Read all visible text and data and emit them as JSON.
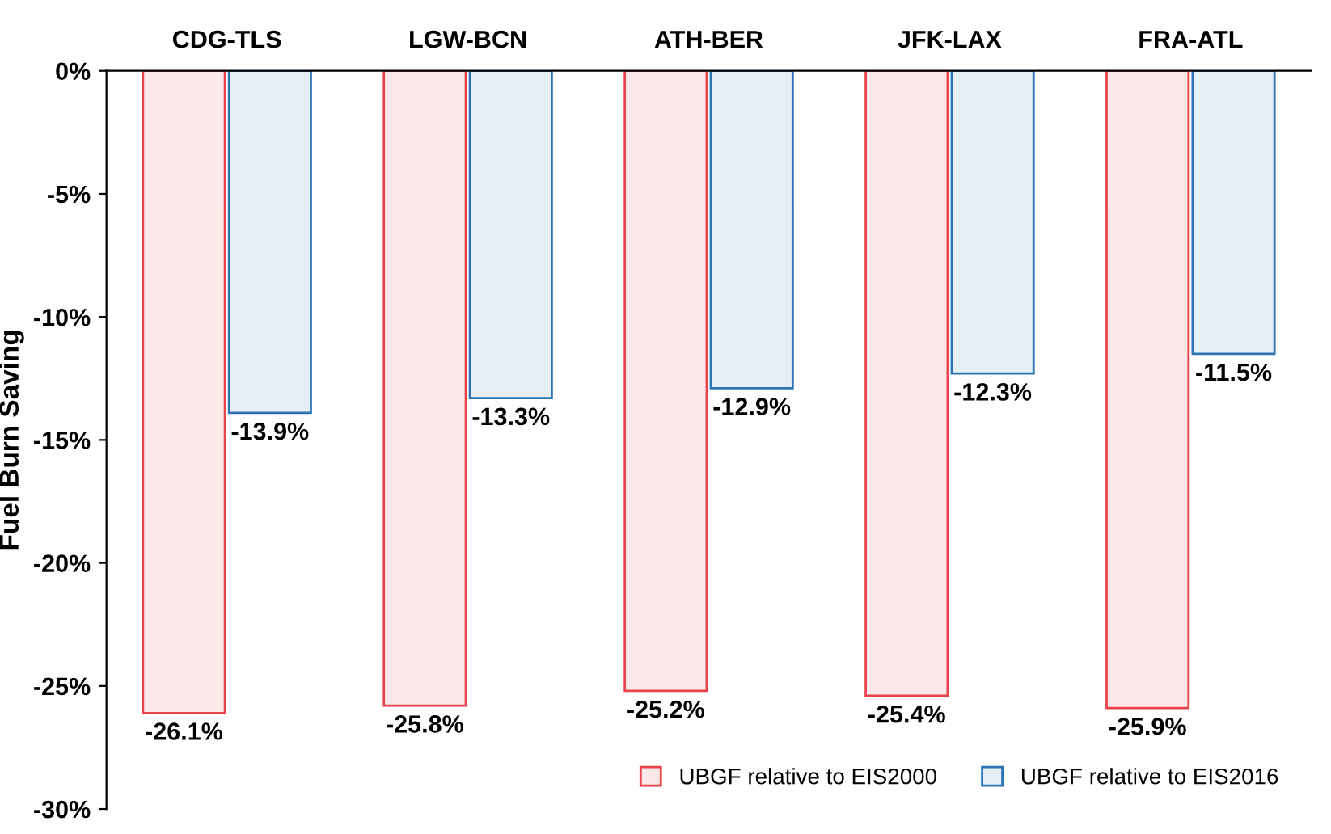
{
  "chart_data": {
    "type": "bar",
    "ylabel": "Fuel Burn Saving",
    "categories": [
      "CDG-TLS",
      "LGW-BCN",
      "ATH-BER",
      "JFK-LAX",
      "FRA-ATL"
    ],
    "series": [
      {
        "name": "UBGF relative to EIS2000",
        "color": "#e8434b",
        "values": [
          -26.1,
          -25.8,
          -25.2,
          -25.4,
          -25.9
        ],
        "value_labels": [
          "-26.1%",
          "-25.8%",
          "-25.2%",
          "-25.4%",
          "-25.9%"
        ]
      },
      {
        "name": "UBGF relative to EIS2016",
        "color": "#2e74b5",
        "values": [
          -13.9,
          -13.3,
          -12.9,
          -12.3,
          -11.5
        ],
        "value_labels": [
          "-13.9%",
          "-13.3%",
          "-12.9%",
          "-12.3%",
          "-11.5%"
        ]
      }
    ],
    "ylim": [
      -30,
      0
    ],
    "yticks": [
      {
        "value": 0,
        "label": "0%"
      },
      {
        "value": -5,
        "label": "-5%"
      },
      {
        "value": -10,
        "label": "-10%"
      },
      {
        "value": -15,
        "label": "-15%"
      },
      {
        "value": -20,
        "label": "-20%"
      },
      {
        "value": -25,
        "label": "-25%"
      },
      {
        "value": -30,
        "label": "-30%"
      }
    ],
    "grid": false,
    "legend": "bottom right"
  }
}
